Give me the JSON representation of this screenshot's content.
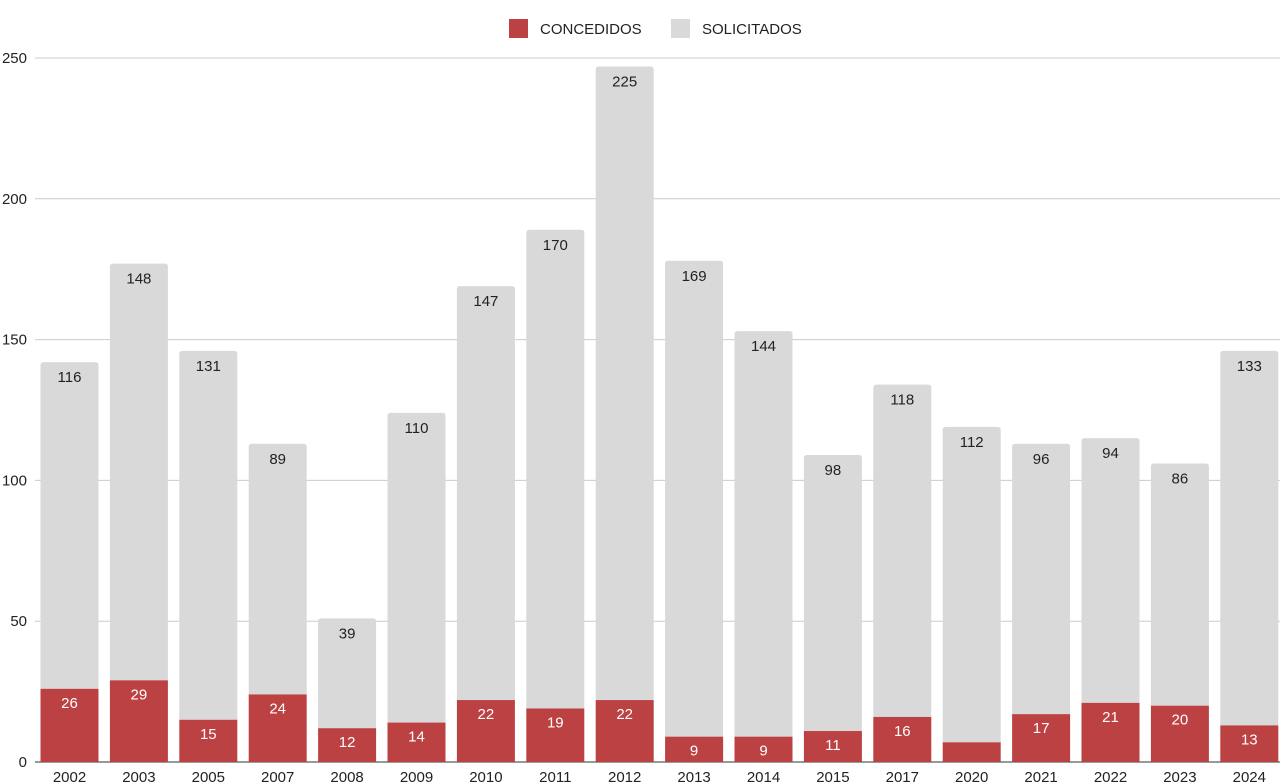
{
  "chart_data": {
    "type": "bar",
    "stacked": true,
    "title": "",
    "xlabel": "",
    "ylabel": "",
    "ylim": [
      0,
      250
    ],
    "yticks": [
      0,
      50,
      100,
      150,
      200,
      250
    ],
    "grid": true,
    "legend_position": "top-center",
    "categories": [
      "2002",
      "2003",
      "2005",
      "2007",
      "2008",
      "2009",
      "2010",
      "2011",
      "2012",
      "2013",
      "2014",
      "2015",
      "2017",
      "2020",
      "2021",
      "2022",
      "2023",
      "2024"
    ],
    "series": [
      {
        "name": "CONCEDIDOS",
        "color": "#bc4143",
        "label_color": "#ffffff",
        "values": [
          26,
          29,
          15,
          24,
          12,
          14,
          22,
          19,
          22,
          9,
          9,
          11,
          16,
          7,
          17,
          21,
          20,
          13
        ],
        "labels": [
          "26",
          "29",
          "15",
          "24",
          "12",
          "14",
          "22",
          "19",
          "22",
          "9",
          "9",
          "11",
          "16",
          "",
          "17",
          "21",
          "20",
          "13"
        ]
      },
      {
        "name": "SOLICITADOS",
        "color": "#d9d9d9",
        "label_color": "#222222",
        "values": [
          116,
          148,
          131,
          89,
          39,
          110,
          147,
          170,
          225,
          169,
          144,
          98,
          118,
          112,
          96,
          94,
          86,
          133
        ],
        "labels": [
          "116",
          "148",
          "131",
          "89",
          "39",
          "110",
          "147",
          "170",
          "225",
          "169",
          "144",
          "98",
          "118",
          "112",
          "96",
          "94",
          "86",
          "133"
        ]
      }
    ]
  }
}
